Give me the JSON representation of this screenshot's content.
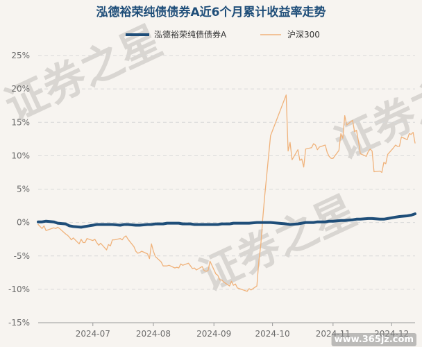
{
  "chart_data": {
    "type": "line",
    "title": "泓德裕荣纯债债券A近6个月累计收益率走势",
    "xlabel": "",
    "ylabel": "",
    "ylim": [
      -15,
      25
    ],
    "y_ticks": [
      "25%",
      "20%",
      "15%",
      "10%",
      "5%",
      "0%",
      "-5%",
      "-10%",
      "-15%"
    ],
    "y_tick_values": [
      25,
      20,
      15,
      10,
      5,
      0,
      -5,
      -10,
      -15
    ],
    "x_range": [
      "2024-06-03",
      "2024-12-13"
    ],
    "x_ticks": [
      {
        "label": "2024-07",
        "date": "2024-07-01"
      },
      {
        "label": "2024-08",
        "date": "2024-08-01"
      },
      {
        "label": "2024-09",
        "date": "2024-09-01"
      },
      {
        "label": "2024-10",
        "date": "2024-10-01"
      },
      {
        "label": "2024-11",
        "date": "2024-11-01"
      },
      {
        "label": "2024-12",
        "date": "2024-12-01"
      }
    ],
    "grid": true,
    "legend_position": "top",
    "series": [
      {
        "name": "泓德裕荣纯债债券A",
        "color": "#1f4e79",
        "points": [
          [
            "2024-06-03",
            0.1
          ],
          [
            "2024-06-05",
            0.1
          ],
          [
            "2024-06-07",
            0.2
          ],
          [
            "2024-06-11",
            0.1
          ],
          [
            "2024-06-13",
            -0.1
          ],
          [
            "2024-06-17",
            -0.2
          ],
          [
            "2024-06-19",
            -0.5
          ],
          [
            "2024-06-21",
            -0.6
          ],
          [
            "2024-06-25",
            -0.7
          ],
          [
            "2024-06-27",
            -0.6
          ],
          [
            "2024-07-01",
            -0.4
          ],
          [
            "2024-07-03",
            -0.3
          ],
          [
            "2024-07-05",
            -0.3
          ],
          [
            "2024-07-09",
            -0.3
          ],
          [
            "2024-07-11",
            -0.3
          ],
          [
            "2024-07-15",
            -0.4
          ],
          [
            "2024-07-17",
            -0.3
          ],
          [
            "2024-07-19",
            -0.3
          ],
          [
            "2024-07-23",
            -0.4
          ],
          [
            "2024-07-25",
            -0.4
          ],
          [
            "2024-07-29",
            -0.3
          ],
          [
            "2024-07-31",
            -0.3
          ],
          [
            "2024-08-02",
            -0.2
          ],
          [
            "2024-08-06",
            -0.2
          ],
          [
            "2024-08-08",
            -0.1
          ],
          [
            "2024-08-12",
            -0.1
          ],
          [
            "2024-08-14",
            -0.1
          ],
          [
            "2024-08-16",
            -0.2
          ],
          [
            "2024-08-20",
            -0.2
          ],
          [
            "2024-08-22",
            -0.3
          ],
          [
            "2024-08-26",
            -0.3
          ],
          [
            "2024-08-28",
            -0.3
          ],
          [
            "2024-08-30",
            -0.3
          ],
          [
            "2024-09-03",
            -0.3
          ],
          [
            "2024-09-05",
            -0.2
          ],
          [
            "2024-09-09",
            -0.2
          ],
          [
            "2024-09-11",
            -0.1
          ],
          [
            "2024-09-13",
            -0.1
          ],
          [
            "2024-09-19",
            -0.1
          ],
          [
            "2024-09-23",
            0.0
          ],
          [
            "2024-09-25",
            0.0
          ],
          [
            "2024-09-27",
            0.0
          ],
          [
            "2024-09-30",
            0.0
          ],
          [
            "2024-10-08",
            -0.2
          ],
          [
            "2024-10-10",
            -0.3
          ],
          [
            "2024-10-14",
            -0.2
          ],
          [
            "2024-10-16",
            -0.1
          ],
          [
            "2024-10-18",
            0.0
          ],
          [
            "2024-10-22",
            0.0
          ],
          [
            "2024-10-24",
            0.1
          ],
          [
            "2024-10-28",
            0.1
          ],
          [
            "2024-10-30",
            0.2
          ],
          [
            "2024-11-01",
            0.2
          ],
          [
            "2024-11-05",
            0.3
          ],
          [
            "2024-11-07",
            0.3
          ],
          [
            "2024-11-11",
            0.4
          ],
          [
            "2024-11-13",
            0.5
          ],
          [
            "2024-11-15",
            0.5
          ],
          [
            "2024-11-19",
            0.6
          ],
          [
            "2024-11-21",
            0.6
          ],
          [
            "2024-11-25",
            0.5
          ],
          [
            "2024-11-27",
            0.5
          ],
          [
            "2024-11-29",
            0.6
          ],
          [
            "2024-12-03",
            0.8
          ],
          [
            "2024-12-05",
            0.9
          ],
          [
            "2024-12-09",
            1.0
          ],
          [
            "2024-12-11",
            1.1
          ],
          [
            "2024-12-13",
            1.3
          ]
        ]
      },
      {
        "name": "沪深300",
        "color": "#f0b27a",
        "points": [
          [
            "2024-06-03",
            -0.3
          ],
          [
            "2024-06-05",
            -0.9
          ],
          [
            "2024-06-06",
            -0.5
          ],
          [
            "2024-06-07",
            -1.2
          ],
          [
            "2024-06-11",
            -0.8
          ],
          [
            "2024-06-12",
            -0.9
          ],
          [
            "2024-06-13",
            -0.7
          ],
          [
            "2024-06-14",
            -0.9
          ],
          [
            "2024-06-17",
            -1.7
          ],
          [
            "2024-06-18",
            -1.9
          ],
          [
            "2024-06-19",
            -2.2
          ],
          [
            "2024-06-20",
            -2.6
          ],
          [
            "2024-06-21",
            -2.3
          ],
          [
            "2024-06-24",
            -3.2
          ],
          [
            "2024-06-25",
            -2.5
          ],
          [
            "2024-06-26",
            -3.0
          ],
          [
            "2024-06-27",
            -3.0
          ],
          [
            "2024-06-28",
            -2.4
          ],
          [
            "2024-07-01",
            -2.7
          ],
          [
            "2024-07-02",
            -2.5
          ],
          [
            "2024-07-03",
            -3.0
          ],
          [
            "2024-07-04",
            -3.4
          ],
          [
            "2024-07-05",
            -3.1
          ],
          [
            "2024-07-08",
            -4.1
          ],
          [
            "2024-07-09",
            -3.3
          ],
          [
            "2024-07-10",
            -3.5
          ],
          [
            "2024-07-11",
            -2.6
          ],
          [
            "2024-07-12",
            -2.6
          ],
          [
            "2024-07-15",
            -2.4
          ],
          [
            "2024-07-16",
            -2.6
          ],
          [
            "2024-07-17",
            -2.2
          ],
          [
            "2024-07-18",
            -2.0
          ],
          [
            "2024-07-19",
            -2.5
          ],
          [
            "2024-07-22",
            -3.6
          ],
          [
            "2024-07-23",
            -4.3
          ],
          [
            "2024-07-24",
            -4.6
          ],
          [
            "2024-07-25",
            -4.5
          ],
          [
            "2024-07-26",
            -4.3
          ],
          [
            "2024-07-29",
            -4.7
          ],
          [
            "2024-07-30",
            -5.4
          ],
          [
            "2024-07-31",
            -3.2
          ],
          [
            "2024-08-01",
            -4.3
          ],
          [
            "2024-08-02",
            -5.1
          ],
          [
            "2024-08-05",
            -5.9
          ],
          [
            "2024-08-06",
            -6.5
          ],
          [
            "2024-08-07",
            -6.5
          ],
          [
            "2024-08-08",
            -6.5
          ],
          [
            "2024-08-09",
            -6.4
          ],
          [
            "2024-08-12",
            -6.8
          ],
          [
            "2024-08-13",
            -6.7
          ],
          [
            "2024-08-14",
            -6.8
          ],
          [
            "2024-08-15",
            -6.2
          ],
          [
            "2024-08-16",
            -6.4
          ],
          [
            "2024-08-19",
            -6.1
          ],
          [
            "2024-08-20",
            -6.5
          ],
          [
            "2024-08-21",
            -6.9
          ],
          [
            "2024-08-22",
            -6.8
          ],
          [
            "2024-08-23",
            -7.1
          ],
          [
            "2024-08-26",
            -6.6
          ],
          [
            "2024-08-27",
            -7.2
          ],
          [
            "2024-08-28",
            -7.3
          ],
          [
            "2024-08-29",
            -7.2
          ],
          [
            "2024-08-30",
            -5.8
          ],
          [
            "2024-09-02",
            -7.7
          ],
          [
            "2024-09-03",
            -7.9
          ],
          [
            "2024-09-04",
            -8.6
          ],
          [
            "2024-09-05",
            -8.6
          ],
          [
            "2024-09-06",
            -8.9
          ],
          [
            "2024-09-09",
            -9.5
          ],
          [
            "2024-09-10",
            -8.8
          ],
          [
            "2024-09-11",
            -9.4
          ],
          [
            "2024-09-12",
            -9.2
          ],
          [
            "2024-09-13",
            -9.8
          ],
          [
            "2024-09-18",
            -10.3
          ],
          [
            "2024-09-19",
            -9.9
          ],
          [
            "2024-09-20",
            -10.1
          ],
          [
            "2024-09-23",
            -9.5
          ],
          [
            "2024-09-24",
            -5.8
          ],
          [
            "2024-09-25",
            -3.4
          ],
          [
            "2024-09-26",
            0.5
          ],
          [
            "2024-09-27",
            4.0
          ],
          [
            "2024-09-30",
            13.0
          ],
          [
            "2024-10-08",
            19.1
          ],
          [
            "2024-10-09",
            10.7
          ],
          [
            "2024-10-10",
            12.0
          ],
          [
            "2024-10-11",
            9.4
          ],
          [
            "2024-10-14",
            10.9
          ],
          [
            "2024-10-15",
            9.3
          ],
          [
            "2024-10-16",
            9.5
          ],
          [
            "2024-10-17",
            8.3
          ],
          [
            "2024-10-18",
            11.0
          ],
          [
            "2024-10-21",
            11.2
          ],
          [
            "2024-10-22",
            11.8
          ],
          [
            "2024-10-23",
            11.6
          ],
          [
            "2024-10-24",
            10.9
          ],
          [
            "2024-10-25",
            11.3
          ],
          [
            "2024-10-28",
            11.6
          ],
          [
            "2024-10-29",
            10.5
          ],
          [
            "2024-10-30",
            9.9
          ],
          [
            "2024-10-31",
            9.6
          ],
          [
            "2024-11-01",
            9.6
          ],
          [
            "2024-11-04",
            10.8
          ],
          [
            "2024-11-05",
            13.3
          ],
          [
            "2024-11-06",
            12.6
          ],
          [
            "2024-11-07",
            16.0
          ],
          [
            "2024-11-08",
            14.6
          ],
          [
            "2024-11-11",
            15.3
          ],
          [
            "2024-11-12",
            13.6
          ],
          [
            "2024-11-13",
            13.8
          ],
          [
            "2024-11-14",
            12.2
          ],
          [
            "2024-11-15",
            10.3
          ],
          [
            "2024-11-18",
            9.9
          ],
          [
            "2024-11-19",
            10.6
          ],
          [
            "2024-11-20",
            11.0
          ],
          [
            "2024-11-21",
            10.7
          ],
          [
            "2024-11-22",
            7.6
          ],
          [
            "2024-11-25",
            7.7
          ],
          [
            "2024-11-26",
            7.5
          ],
          [
            "2024-11-27",
            9.0
          ],
          [
            "2024-11-28",
            8.8
          ],
          [
            "2024-11-29",
            10.2
          ],
          [
            "2024-12-02",
            11.2
          ],
          [
            "2024-12-03",
            11.6
          ],
          [
            "2024-12-04",
            11.4
          ],
          [
            "2024-12-05",
            11.4
          ],
          [
            "2024-12-06",
            12.8
          ],
          [
            "2024-12-09",
            12.4
          ],
          [
            "2024-12-10",
            13.3
          ],
          [
            "2024-12-11",
            13.2
          ],
          [
            "2024-12-12",
            13.5
          ],
          [
            "2024-12-13",
            11.9
          ]
        ]
      }
    ]
  },
  "watermark": {
    "text": "证券之星",
    "source": "www.365jz.com"
  },
  "colors": {
    "background": "#f7f4f0",
    "grid": "#d8d8d8",
    "title": "#1f4e79",
    "tick": "#6b6b6b"
  }
}
